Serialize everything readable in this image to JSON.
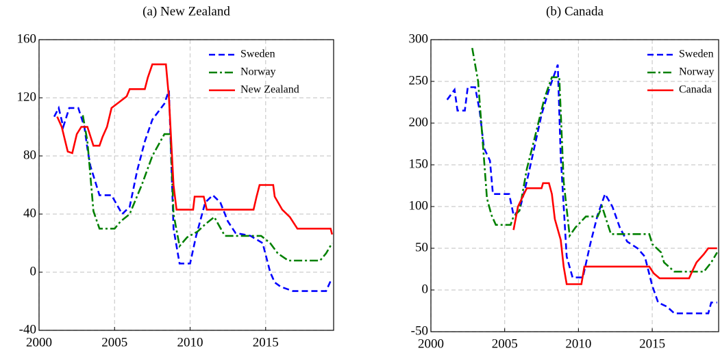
{
  "chart_data": [
    {
      "type": "line",
      "title": "(a) New Zealand",
      "xlim": [
        2000,
        2019.5
      ],
      "xticks": [
        2000,
        2005,
        2010,
        2015
      ],
      "ylim": [
        -40,
        160
      ],
      "yticks": [
        -40,
        0,
        40,
        80,
        120,
        160
      ],
      "grid": true,
      "legend": "upper right",
      "series": [
        {
          "name": "Sweden",
          "color": "#0000ff",
          "dash": "dashed",
          "x": [
            2001,
            2001.3,
            2001.6,
            2002,
            2002.6,
            2003,
            2003.2,
            2003.4,
            2004,
            2004.8,
            2005.5,
            2006,
            2006.5,
            2007,
            2007.5,
            2008.3,
            2008.6,
            2008.9,
            2009.3,
            2010,
            2010.4,
            2011,
            2011.5,
            2012,
            2012.5,
            2013,
            2014,
            2014.8,
            2015.3,
            2015.6,
            2016,
            2016.8,
            2019,
            2019.3
          ],
          "values": [
            107,
            113,
            100,
            113,
            113,
            100,
            85,
            73,
            53,
            53,
            40,
            45,
            70,
            90,
            105,
            116,
            125,
            30,
            6,
            6,
            25,
            48,
            53,
            48,
            35,
            27,
            25,
            20,
            0,
            -7,
            -10,
            -13,
            -13,
            -6
          ]
        },
        {
          "name": "Norway",
          "color": "#008000",
          "dash": "dashdot",
          "x": [
            2002.9,
            2003.2,
            2003.4,
            2003.6,
            2004,
            2005,
            2005.4,
            2006,
            2006.8,
            2007.5,
            2008.3,
            2008.7,
            2008.9,
            2009.3,
            2009.8,
            2010.5,
            2011,
            2011.6,
            2012.3,
            2014.7,
            2015.3,
            2015.8,
            2016.5,
            2018.6,
            2019,
            2019.4
          ],
          "values": [
            108,
            90,
            66,
            42,
            30,
            30,
            35,
            40,
            60,
            80,
            95,
            95,
            40,
            18,
            24,
            28,
            33,
            38,
            25,
            25,
            20,
            13,
            8,
            8,
            13,
            20
          ]
        },
        {
          "name": "New Zealand",
          "color": "#ff0000",
          "dash": "solid",
          "x": [
            2001.2,
            2001.5,
            2001.9,
            2002.2,
            2002.5,
            2002.8,
            2003.2,
            2003.6,
            2004,
            2004.2,
            2004.5,
            2004.8,
            2005.3,
            2005.8,
            2006,
            2007,
            2007.2,
            2007.5,
            2008.4,
            2008.6,
            2008.9,
            2009.1,
            2010.2,
            2010.3,
            2010.9,
            2011.1,
            2014.2,
            2014.4,
            2014.6,
            2015.5,
            2015.6,
            2016.1,
            2016.6,
            2017.1,
            2019.3,
            2019.4
          ],
          "values": [
            107,
            100,
            83,
            82,
            95,
            100,
            100,
            87,
            87,
            93,
            100,
            113,
            117,
            121,
            126,
            126,
            134,
            143,
            143,
            120,
            60,
            43,
            43,
            52,
            52,
            43,
            43,
            52,
            60,
            60,
            52,
            43,
            38,
            30,
            30,
            26
          ]
        }
      ]
    },
    {
      "type": "line",
      "title": "(b) Canada",
      "xlim": [
        2000,
        2019.5
      ],
      "xticks": [
        2000,
        2005,
        2010,
        2015
      ],
      "ylim": [
        -50,
        300
      ],
      "yticks": [
        -50,
        0,
        50,
        100,
        150,
        200,
        250,
        300
      ],
      "grid": true,
      "legend": "upper right",
      "series": [
        {
          "name": "Sweden",
          "color": "#0000ff",
          "dash": "dashed",
          "x": [
            2001.1,
            2001.6,
            2001.8,
            2002.3,
            2002.5,
            2003,
            2003.3,
            2003.6,
            2004,
            2004.2,
            2005.3,
            2005.6,
            2006,
            2006.5,
            2007,
            2007.5,
            2008,
            2008.6,
            2008.8,
            2009.2,
            2009.6,
            2010.3,
            2010.8,
            2011.3,
            2011.8,
            2012.3,
            2012.8,
            2013.3,
            2014,
            2014.5,
            2015,
            2015.4,
            2016,
            2016.5,
            2018.8,
            2019,
            2019.4
          ],
          "values": [
            228,
            240,
            215,
            215,
            243,
            243,
            215,
            170,
            155,
            115,
            115,
            90,
            95,
            130,
            170,
            210,
            240,
            270,
            160,
            40,
            15,
            15,
            55,
            90,
            115,
            100,
            75,
            58,
            50,
            40,
            5,
            -15,
            -20,
            -28,
            -28,
            -15,
            -15
          ]
        },
        {
          "name": "Norway",
          "color": "#008000",
          "dash": "dashdot",
          "x": [
            2002.8,
            2003.2,
            2003.5,
            2003.8,
            2004.1,
            2004.4,
            2005.4,
            2005.6,
            2006,
            2006.5,
            2007,
            2007.7,
            2008.2,
            2008.7,
            2009,
            2009.4,
            2009.8,
            2010.5,
            2011.3,
            2011.6,
            2012.2,
            2014.8,
            2015,
            2015.6,
            2015.8,
            2016.5,
            2018.5,
            2019,
            2019.4
          ],
          "values": [
            290,
            250,
            180,
            110,
            90,
            78,
            78,
            88,
            95,
            145,
            180,
            230,
            255,
            255,
            130,
            65,
            75,
            88,
            88,
            100,
            67,
            67,
            55,
            45,
            33,
            22,
            22,
            33,
            45
          ]
        },
        {
          "name": "Canada",
          "color": "#ff0000",
          "dash": "solid",
          "x": [
            2005.6,
            2005.9,
            2006.5,
            2007.5,
            2007.6,
            2008,
            2008.2,
            2008.4,
            2008.8,
            2009,
            2009.2,
            2010.2,
            2010.4,
            2014.8,
            2015.1,
            2015.5,
            2017.5,
            2017.7,
            2018,
            2018.5,
            2018.8,
            2019.4
          ],
          "values": [
            72,
            100,
            122,
            122,
            128,
            128,
            115,
            85,
            60,
            28,
            7,
            7,
            28,
            28,
            20,
            14,
            14,
            22,
            33,
            43,
            50,
            50
          ]
        }
      ]
    }
  ]
}
